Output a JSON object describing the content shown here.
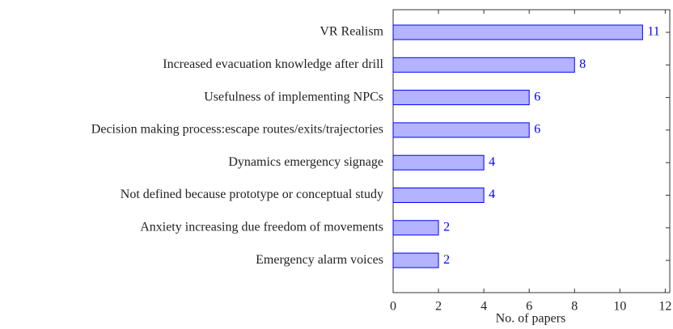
{
  "chart_data": {
    "type": "bar",
    "orientation": "horizontal",
    "categories": [
      "VR Realism",
      "Increased evacuation knowledge after drill",
      "Usefulness of implementing NPCs",
      "Decision making process:escape routes/exits/trajectories",
      "Dynamics emergency signage",
      "Not defined because prototype or conceptual study",
      "Anxiety increasing due freedom of movements",
      "Emergency alarm voices"
    ],
    "values": [
      11,
      8,
      6,
      6,
      4,
      4,
      2,
      2
    ],
    "color": "#b3b3ff",
    "edge_color": "#0000ff",
    "value_label_color": "#0000ff",
    "xlabel": "No. of papers",
    "xlim": [
      0,
      12.2
    ],
    "xticks": [
      0,
      2,
      4,
      6,
      8,
      10,
      12
    ],
    "grid": false
  }
}
